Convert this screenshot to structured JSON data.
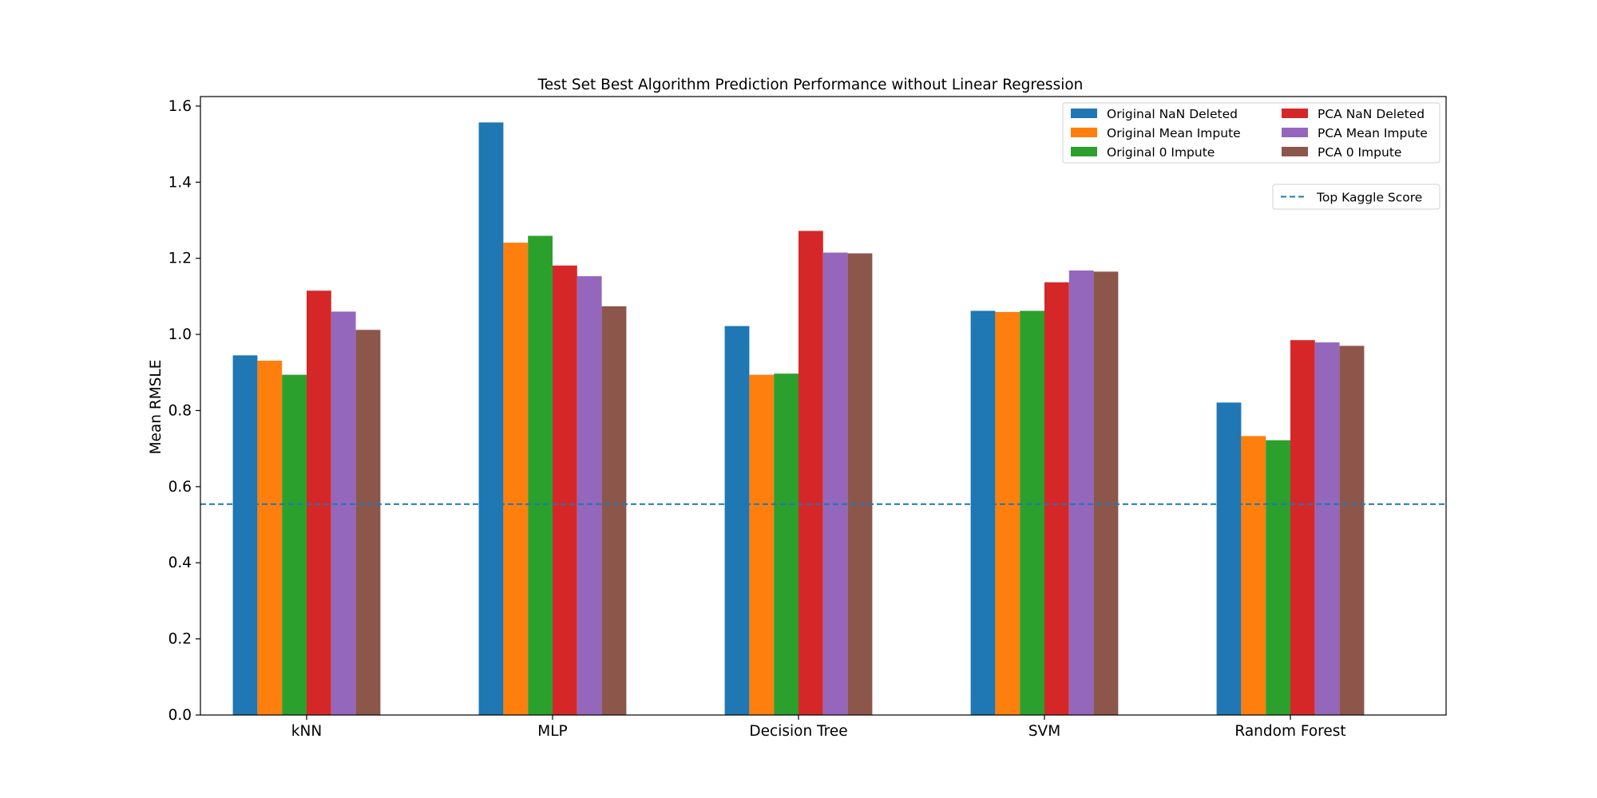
{
  "chart_data": {
    "type": "bar",
    "title": "Test Set Best Algorithm Prediction Performance without Linear Regression",
    "xlabel": "",
    "ylabel": "Mean RMSLE",
    "ylim": [
      0,
      1.625
    ],
    "yticks": [
      "0.0",
      "0.2",
      "0.4",
      "0.6",
      "0.8",
      "1.0",
      "1.2",
      "1.4",
      "1.6"
    ],
    "categories": [
      "kNN",
      "MLP",
      "Decision Tree",
      "SVM",
      "Random Forest"
    ],
    "series": [
      {
        "name": "Original NaN Deleted",
        "color": "#1f77b4",
        "values": [
          0.945,
          1.557,
          1.022,
          1.062,
          0.821
        ]
      },
      {
        "name": "Original Mean Impute",
        "color": "#ff7f0e",
        "values": [
          0.931,
          1.241,
          0.894,
          1.059,
          0.733
        ]
      },
      {
        "name": "Original 0 Impute",
        "color": "#2ca02c",
        "values": [
          0.894,
          1.259,
          0.897,
          1.062,
          0.722
        ]
      },
      {
        "name": "PCA NaN Deleted",
        "color": "#d62728",
        "values": [
          1.115,
          1.181,
          1.272,
          1.137,
          0.985
        ]
      },
      {
        "name": "PCA Mean Impute",
        "color": "#9467bd",
        "values": [
          1.06,
          1.153,
          1.215,
          1.168,
          0.979
        ]
      },
      {
        "name": "PCA 0 Impute",
        "color": "#8c564b",
        "values": [
          1.012,
          1.074,
          1.213,
          1.165,
          0.97
        ]
      }
    ],
    "reference_line": {
      "name": "Top Kaggle Score",
      "value": 0.554,
      "color": "#1f77b4",
      "style": "dashed"
    },
    "legend_placement": "top-right",
    "grid": false
  }
}
